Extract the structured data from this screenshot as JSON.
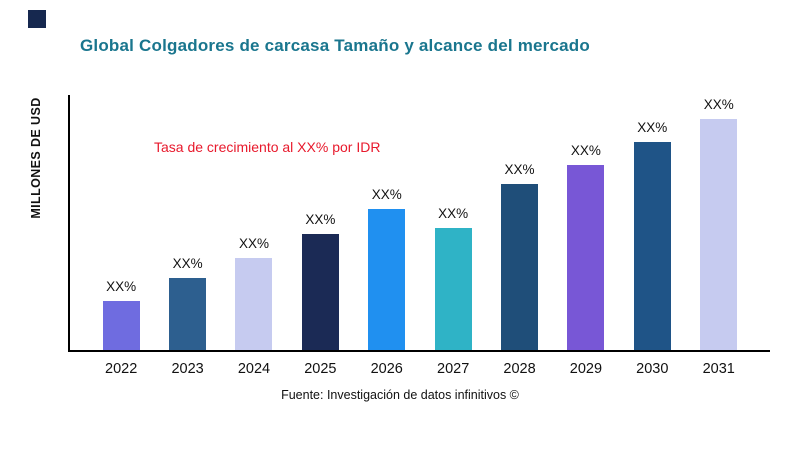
{
  "page": {
    "title": "Global Colgadores de carcasa Tamaño y alcance del mercado",
    "y_axis_label": "MILLONES DE USD",
    "source": "Fuente: Investigación de datos infinitivos ©"
  },
  "annotation": {
    "text": "Tasa de crecimiento al XX% por IDR",
    "color": "#e8192c"
  },
  "colors": {
    "title": "#1a768e",
    "axis": "#000000",
    "logo": "#16284f"
  },
  "chart_data": {
    "type": "bar",
    "title": "Global Colgadores de carcasa Tamaño y alcance del mercado",
    "xlabel": "",
    "ylabel": "MILLONES DE USD",
    "categories": [
      "2022",
      "2023",
      "2024",
      "2025",
      "2026",
      "2027",
      "2028",
      "2029",
      "2030",
      "2031"
    ],
    "values": [
      21,
      31,
      40,
      50,
      61,
      53,
      72,
      80,
      90,
      100
    ],
    "value_labels": [
      "XX%",
      "XX%",
      "XX%",
      "XX%",
      "XX%",
      "XX%",
      "XX%",
      "XX%",
      "XX%",
      "XX%"
    ],
    "bar_colors": [
      "#6f6ce0",
      "#2d5f8f",
      "#c6cbf0",
      "#1b2a55",
      "#2090f0",
      "#2fb3c6",
      "#1f4e79",
      "#7857d6",
      "#1f5487",
      "#c6cbf0"
    ],
    "ylim": [
      0,
      105
    ],
    "grid": false,
    "legend": false,
    "annotation": "Tasa de crecimiento al XX% por IDR"
  }
}
